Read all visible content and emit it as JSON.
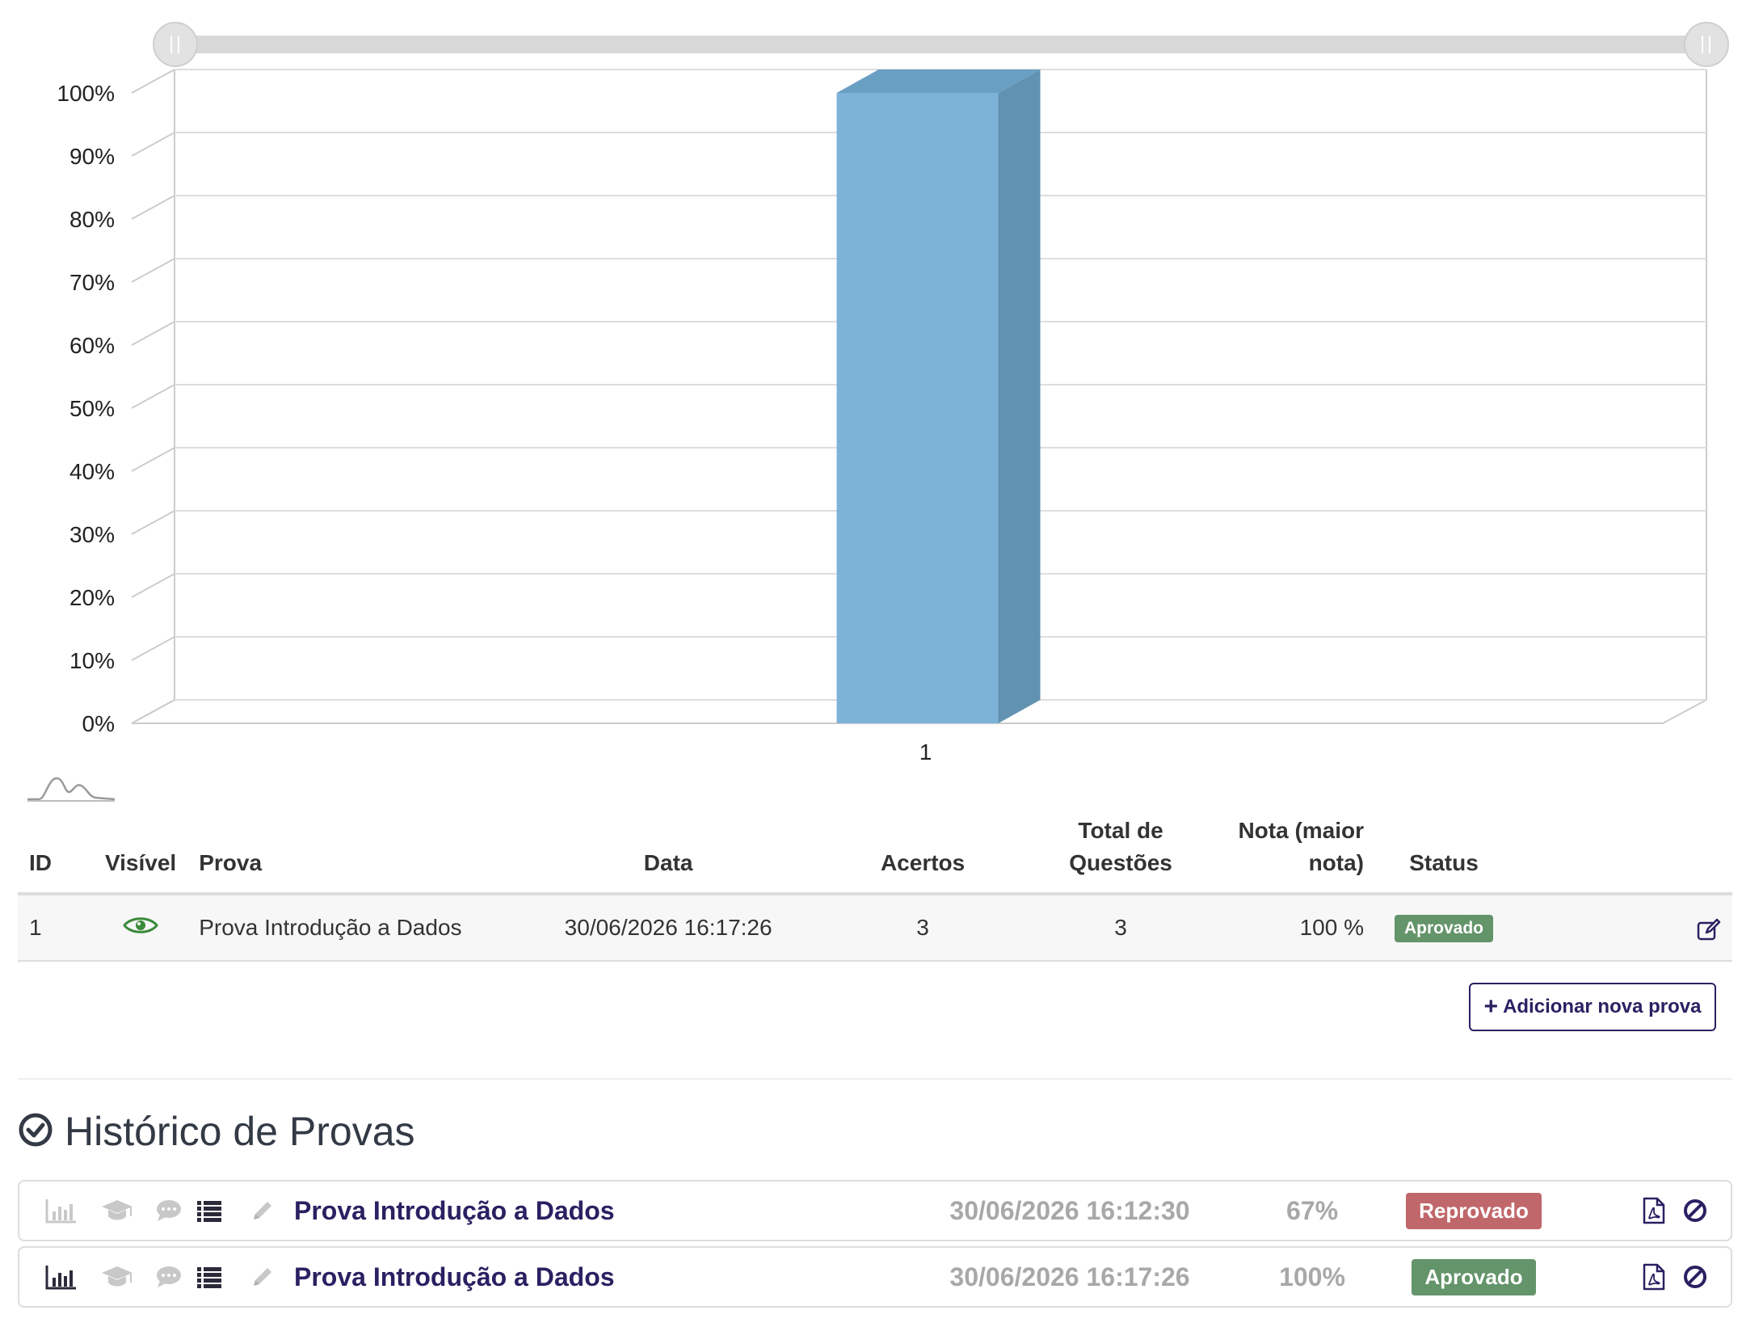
{
  "chart_data": {
    "type": "bar",
    "categories": [
      "1"
    ],
    "values": [
      100
    ],
    "ylim": [
      0,
      100
    ],
    "yticks": [
      "0%",
      "10%",
      "20%",
      "30%",
      "40%",
      "50%",
      "60%",
      "70%",
      "80%",
      "90%",
      "100%"
    ],
    "grid": true,
    "style": "3d",
    "colors": {
      "bar_front": "#7db3d7",
      "bar_side": "#6192b1",
      "bar_top": "#6a9fc4"
    }
  },
  "exam_table": {
    "headers": {
      "id": "ID",
      "visible": "Visível",
      "exam": "Prova",
      "date": "Data",
      "hits": "Acertos",
      "total_line1": "Total de",
      "total_line2": "Questões",
      "grade_line1": "Nota (maior",
      "grade_line2": "nota)",
      "status": "Status"
    },
    "rows": [
      {
        "id": "1",
        "visible_icon": "eye-icon",
        "exam": "Prova Introdução a Dados",
        "date": "30/06/2026 16:17:26",
        "hits": "3",
        "total": "3",
        "grade": "100 %",
        "status": "Aprovado"
      }
    ]
  },
  "add_button": {
    "icon": "plus-icon",
    "label": "Adicionar nova prova"
  },
  "history": {
    "title": "Histórico de Provas",
    "rows": [
      {
        "exam": "Prova Introdução a Dados",
        "date": "30/06/2026 16:12:30",
        "score": "67%",
        "status": "Reprovado"
      },
      {
        "exam": "Prova Introdução a Dados",
        "date": "30/06/2026 16:17:26",
        "score": "100%",
        "status": "Aprovado"
      }
    ]
  },
  "colors": {
    "accent": "#2b2062",
    "approved": "#64946a",
    "failed": "#c0676b",
    "eye": "#3a8a3a"
  }
}
